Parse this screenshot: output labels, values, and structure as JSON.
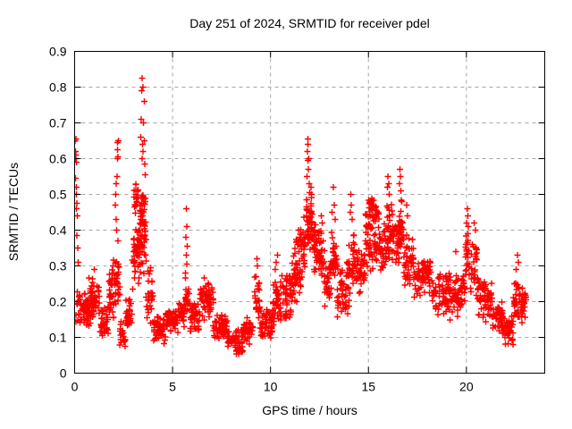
{
  "chart_data": {
    "type": "scatter",
    "title": "Day 251 of 2024, SRMTID for receiver pdel",
    "xlabel": "GPS time / hours",
    "ylabel": "SRMTID / TECUs",
    "x_range": [
      0,
      24
    ],
    "y_range": [
      0,
      0.9
    ],
    "xticks": {
      "values": [
        0,
        5,
        10,
        15,
        20
      ],
      "labels": [
        "0",
        "5",
        "10",
        "15",
        "20"
      ]
    },
    "yticks": {
      "values": [
        0,
        0.1,
        0.2,
        0.3,
        0.4,
        0.5,
        0.6,
        0.7,
        0.8,
        0.9
      ],
      "labels": [
        "0",
        "0.1",
        "0.2",
        "0.3",
        "0.4",
        "0.5",
        "0.6",
        "0.7",
        "0.8",
        "0.9"
      ]
    },
    "grid": true,
    "legend": "none",
    "marker": "plus",
    "point_color": "#ff0000",
    "grid_color": "#a8a8a8",
    "border_color": "#000000",
    "background": "#ffffff",
    "seed": 20240251,
    "scatter": {
      "peak_points": [
        [
          0.03,
          0.65
        ],
        [
          0.06,
          0.655
        ],
        [
          0.04,
          0.62
        ],
        [
          0.07,
          0.61
        ],
        [
          0.05,
          0.6
        ],
        [
          0.09,
          0.59
        ],
        [
          0.05,
          0.545
        ],
        [
          0.1,
          0.52
        ],
        [
          0.08,
          0.5
        ],
        [
          0.12,
          0.475
        ],
        [
          0.1,
          0.46
        ],
        [
          0.13,
          0.44
        ],
        [
          0.11,
          0.385
        ],
        [
          0.15,
          0.35
        ],
        [
          0.18,
          0.31
        ],
        [
          1.0,
          0.29
        ],
        [
          2.1,
          0.5
        ],
        [
          2.13,
          0.53
        ],
        [
          2.16,
          0.55
        ],
        [
          2.18,
          0.6
        ],
        [
          2.22,
          0.605
        ],
        [
          2.2,
          0.625
        ],
        [
          2.19,
          0.645
        ],
        [
          2.24,
          0.65
        ],
        [
          2.08,
          0.47
        ],
        [
          2.12,
          0.43
        ],
        [
          2.15,
          0.4
        ],
        [
          2.21,
          0.37
        ],
        [
          3.45,
          0.825
        ],
        [
          3.5,
          0.8
        ],
        [
          3.42,
          0.79
        ],
        [
          3.55,
          0.76
        ],
        [
          3.4,
          0.71
        ],
        [
          3.52,
          0.7
        ],
        [
          3.38,
          0.66
        ],
        [
          3.56,
          0.65
        ],
        [
          3.47,
          0.64
        ],
        [
          3.5,
          0.62
        ],
        [
          3.44,
          0.6
        ],
        [
          3.58,
          0.585
        ],
        [
          3.6,
          0.555
        ],
        [
          5.7,
          0.46
        ],
        [
          5.72,
          0.41
        ],
        [
          5.68,
          0.38
        ],
        [
          5.75,
          0.355
        ],
        [
          5.7,
          0.33
        ],
        [
          5.73,
          0.305
        ],
        [
          5.66,
          0.28
        ],
        [
          9.3,
          0.32
        ],
        [
          9.33,
          0.3
        ],
        [
          9.27,
          0.27
        ],
        [
          10.3,
          0.31
        ],
        [
          10.36,
          0.33
        ],
        [
          10.24,
          0.29
        ],
        [
          11.9,
          0.655
        ],
        [
          11.92,
          0.64
        ],
        [
          11.88,
          0.62
        ],
        [
          11.95,
          0.6
        ],
        [
          11.9,
          0.595
        ],
        [
          11.93,
          0.57
        ],
        [
          11.87,
          0.55
        ],
        [
          11.97,
          0.53
        ],
        [
          12.0,
          0.505
        ],
        [
          11.85,
          0.485
        ],
        [
          12.06,
          0.52
        ],
        [
          12.1,
          0.5
        ],
        [
          12.6,
          0.44
        ],
        [
          12.65,
          0.42
        ],
        [
          13.2,
          0.52
        ],
        [
          13.25,
          0.47
        ],
        [
          13.15,
          0.45
        ],
        [
          13.3,
          0.43
        ],
        [
          14.1,
          0.5
        ],
        [
          14.13,
          0.47
        ],
        [
          14.07,
          0.45
        ],
        [
          14.16,
          0.43
        ],
        [
          16.0,
          0.55
        ],
        [
          16.03,
          0.53
        ],
        [
          15.98,
          0.52
        ],
        [
          16.06,
          0.5
        ],
        [
          16.6,
          0.57
        ],
        [
          16.62,
          0.55
        ],
        [
          16.58,
          0.53
        ],
        [
          16.65,
          0.51
        ],
        [
          16.7,
          0.48
        ],
        [
          16.95,
          0.47
        ],
        [
          17.0,
          0.44
        ],
        [
          19.45,
          0.34
        ],
        [
          20.05,
          0.46
        ],
        [
          20.08,
          0.44
        ],
        [
          20.0,
          0.42
        ],
        [
          20.1,
          0.41
        ],
        [
          20.4,
          0.42
        ],
        [
          20.46,
          0.4
        ],
        [
          22.6,
          0.33
        ],
        [
          22.65,
          0.31
        ],
        [
          22.55,
          0.29
        ]
      ],
      "band_format": "[x_start_hour, x_end_hour, n_points, y_min, y_max]",
      "density_bands": [
        [
          0.02,
          0.8,
          60,
          0.13,
          0.23
        ],
        [
          0.7,
          0.95,
          12,
          0.18,
          0.29
        ],
        [
          0.8,
          1.3,
          40,
          0.13,
          0.26
        ],
        [
          1.3,
          1.75,
          36,
          0.1,
          0.2
        ],
        [
          1.75,
          2.05,
          30,
          0.14,
          0.33
        ],
        [
          2.05,
          2.3,
          28,
          0.17,
          0.36
        ],
        [
          2.3,
          2.6,
          24,
          0.06,
          0.15
        ],
        [
          2.6,
          2.95,
          28,
          0.1,
          0.23
        ],
        [
          2.95,
          3.3,
          40,
          0.22,
          0.46
        ],
        [
          3.0,
          3.25,
          18,
          0.44,
          0.54
        ],
        [
          3.3,
          3.65,
          42,
          0.26,
          0.5
        ],
        [
          3.35,
          3.6,
          20,
          0.4,
          0.52
        ],
        [
          3.65,
          4.0,
          30,
          0.13,
          0.3
        ],
        [
          4.0,
          4.65,
          50,
          0.08,
          0.17
        ],
        [
          4.65,
          5.3,
          50,
          0.1,
          0.19
        ],
        [
          5.3,
          5.6,
          24,
          0.12,
          0.22
        ],
        [
          5.6,
          5.85,
          20,
          0.14,
          0.27
        ],
        [
          5.85,
          6.4,
          45,
          0.1,
          0.2
        ],
        [
          6.4,
          7.1,
          55,
          0.13,
          0.27
        ],
        [
          7.1,
          7.8,
          55,
          0.09,
          0.17
        ],
        [
          7.8,
          8.6,
          60,
          0.05,
          0.13
        ],
        [
          8.6,
          9.15,
          45,
          0.08,
          0.16
        ],
        [
          9.15,
          9.45,
          25,
          0.12,
          0.28
        ],
        [
          9.45,
          10.1,
          50,
          0.09,
          0.19
        ],
        [
          10.1,
          10.5,
          35,
          0.12,
          0.28
        ],
        [
          10.5,
          11.1,
          50,
          0.14,
          0.3
        ],
        [
          11.1,
          11.55,
          45,
          0.18,
          0.38
        ],
        [
          11.3,
          11.55,
          8,
          0.34,
          0.43
        ],
        [
          11.55,
          11.8,
          30,
          0.25,
          0.45
        ],
        [
          11.8,
          12.15,
          42,
          0.32,
          0.52
        ],
        [
          12.15,
          12.5,
          35,
          0.26,
          0.44
        ],
        [
          12.5,
          12.75,
          25,
          0.24,
          0.42
        ],
        [
          12.75,
          13.1,
          30,
          0.16,
          0.32
        ],
        [
          13.1,
          13.4,
          28,
          0.24,
          0.42
        ],
        [
          13.4,
          14.0,
          50,
          0.15,
          0.32
        ],
        [
          14.0,
          14.3,
          28,
          0.22,
          0.4
        ],
        [
          14.3,
          14.85,
          45,
          0.2,
          0.36
        ],
        [
          14.85,
          15.55,
          60,
          0.28,
          0.48
        ],
        [
          15.0,
          15.5,
          25,
          0.42,
          0.5
        ],
        [
          15.55,
          15.9,
          30,
          0.25,
          0.43
        ],
        [
          15.9,
          16.2,
          28,
          0.3,
          0.5
        ],
        [
          16.2,
          16.55,
          30,
          0.28,
          0.46
        ],
        [
          16.55,
          16.8,
          25,
          0.3,
          0.5
        ],
        [
          16.8,
          17.3,
          40,
          0.24,
          0.4
        ],
        [
          17.3,
          18.2,
          65,
          0.2,
          0.33
        ],
        [
          18.2,
          19.2,
          70,
          0.14,
          0.3
        ],
        [
          19.2,
          19.7,
          40,
          0.15,
          0.28
        ],
        [
          19.7,
          19.95,
          20,
          0.18,
          0.3
        ],
        [
          19.95,
          20.2,
          22,
          0.24,
          0.4
        ],
        [
          20.2,
          20.6,
          30,
          0.2,
          0.38
        ],
        [
          20.6,
          21.3,
          55,
          0.14,
          0.27
        ],
        [
          21.3,
          21.85,
          45,
          0.11,
          0.21
        ],
        [
          21.85,
          22.4,
          45,
          0.07,
          0.17
        ],
        [
          22.4,
          22.75,
          30,
          0.13,
          0.27
        ],
        [
          22.75,
          23.05,
          25,
          0.14,
          0.25
        ]
      ]
    }
  }
}
